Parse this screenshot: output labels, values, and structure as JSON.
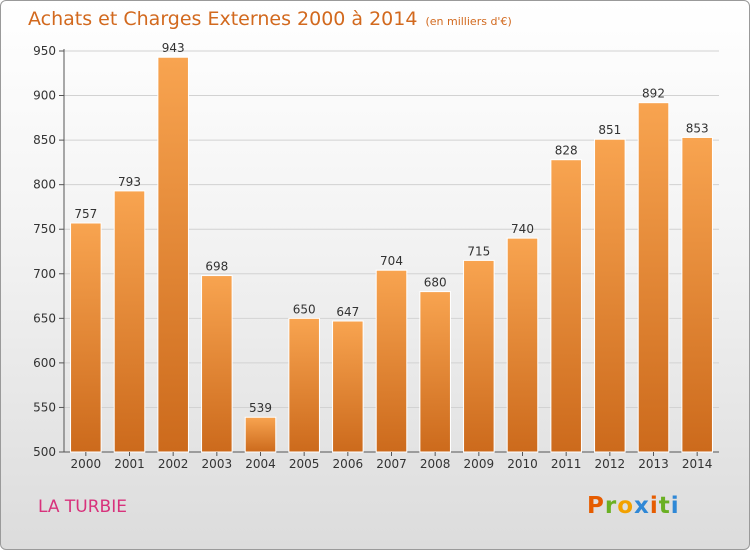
{
  "title": "Achats et Charges Externes 2000 à 2014",
  "subtitle": "(en milliers d'€)",
  "place": "LA TURBIE",
  "brand": {
    "letters": [
      "P",
      "r",
      "o",
      "x",
      "i",
      "t",
      "i"
    ],
    "colors": [
      "#e65c00",
      "#6ab023",
      "#f2a100",
      "#2f88d6",
      "#e65c00",
      "#6ab023",
      "#2f88d6"
    ]
  },
  "colors": {
    "bar_top": "#f8a450",
    "bar_bottom": "#cc6a1c",
    "title": "#d2691e",
    "place": "#d8327c"
  },
  "chart_data": {
    "type": "bar",
    "title": "Achats et Charges Externes 2000 à 2014",
    "subtitle": "(en milliers d'€)",
    "categories": [
      "2000",
      "2001",
      "2002",
      "2003",
      "2004",
      "2005",
      "2006",
      "2007",
      "2008",
      "2009",
      "2010",
      "2011",
      "2012",
      "2013",
      "2014"
    ],
    "values": [
      757,
      793,
      943,
      698,
      539,
      650,
      647,
      704,
      680,
      715,
      740,
      828,
      851,
      892,
      853
    ],
    "ylim": [
      500,
      950
    ],
    "yticks": [
      500,
      550,
      600,
      650,
      700,
      750,
      800,
      850,
      900,
      950
    ],
    "grid": true,
    "legend": false
  }
}
